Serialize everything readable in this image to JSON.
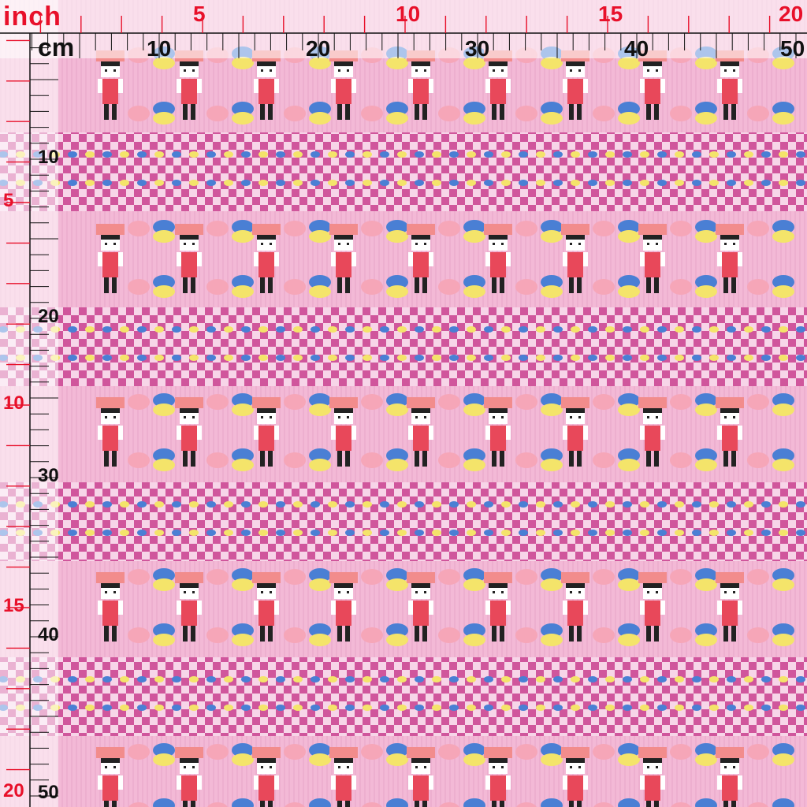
{
  "ruler": {
    "inch_unit_label": "inch",
    "cm_unit_label": "cm",
    "top_inch_labels": [
      "5",
      "10",
      "15",
      "20"
    ],
    "top_cm_labels": [
      "10",
      "20",
      "30",
      "40",
      "50"
    ],
    "left_inch_labels": [
      "5",
      "10",
      "15",
      "20"
    ],
    "left_cm_labels": [
      "10",
      "20",
      "30",
      "40",
      "50"
    ],
    "inch_color": "#e8102a",
    "cm_color": "#111111"
  },
  "fabric": {
    "base_color": "#f3b9d6",
    "stripe_color": "#c9418f",
    "character_hat": "#f28c8c",
    "character_body": "#e8485a",
    "macaron_blue": "#4a7fd4",
    "macaron_yellow": "#f4e46a",
    "macaron_pink": "#f6a6b8"
  }
}
